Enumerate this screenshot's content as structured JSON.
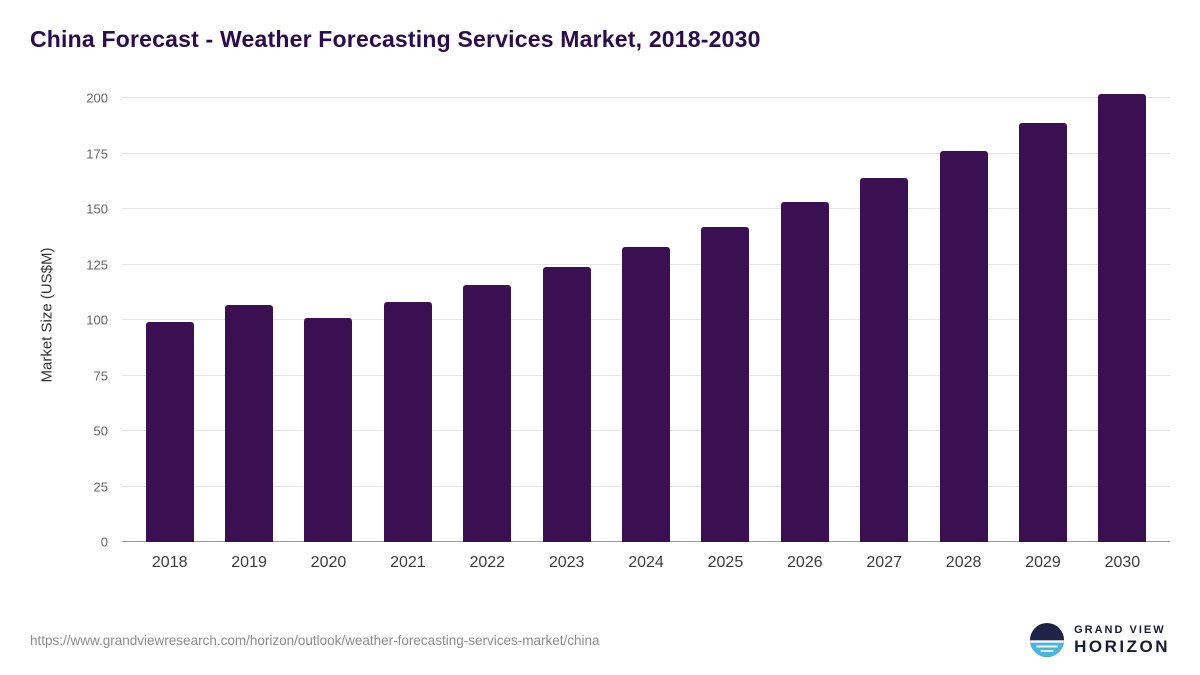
{
  "chart_data": {
    "type": "bar",
    "title": "China Forecast - Weather Forecasting Services Market, 2018-2030",
    "categories": [
      "2018",
      "2019",
      "2020",
      "2021",
      "2022",
      "2023",
      "2024",
      "2025",
      "2026",
      "2027",
      "2028",
      "2029",
      "2030"
    ],
    "values": [
      99,
      107,
      101,
      108,
      116,
      124,
      133,
      142,
      153,
      164,
      176,
      189,
      202
    ],
    "xlabel": "",
    "ylabel": "Market Size (US$M)",
    "ylim": [
      0,
      205
    ],
    "yticks": [
      0,
      25,
      50,
      75,
      100,
      125,
      150,
      175,
      200
    ],
    "grid": true,
    "legend": "none",
    "bar_color": "#3B1053"
  },
  "colors": {
    "bar": "#3B1053",
    "title": "#2A0B50",
    "gridline": "#E4E4E4",
    "axis_line": "#9B9B9B",
    "logo_navy": "#1E2347",
    "logo_blue": "#45B6E6"
  },
  "footer": {
    "source_url": "https://www.grandviewresearch.com/horizon/outlook/weather-forecasting-services-market/china",
    "brand": {
      "icon": "horizon-circle-icon",
      "line1": "GRAND VIEW",
      "line2": "HORIZON"
    }
  }
}
